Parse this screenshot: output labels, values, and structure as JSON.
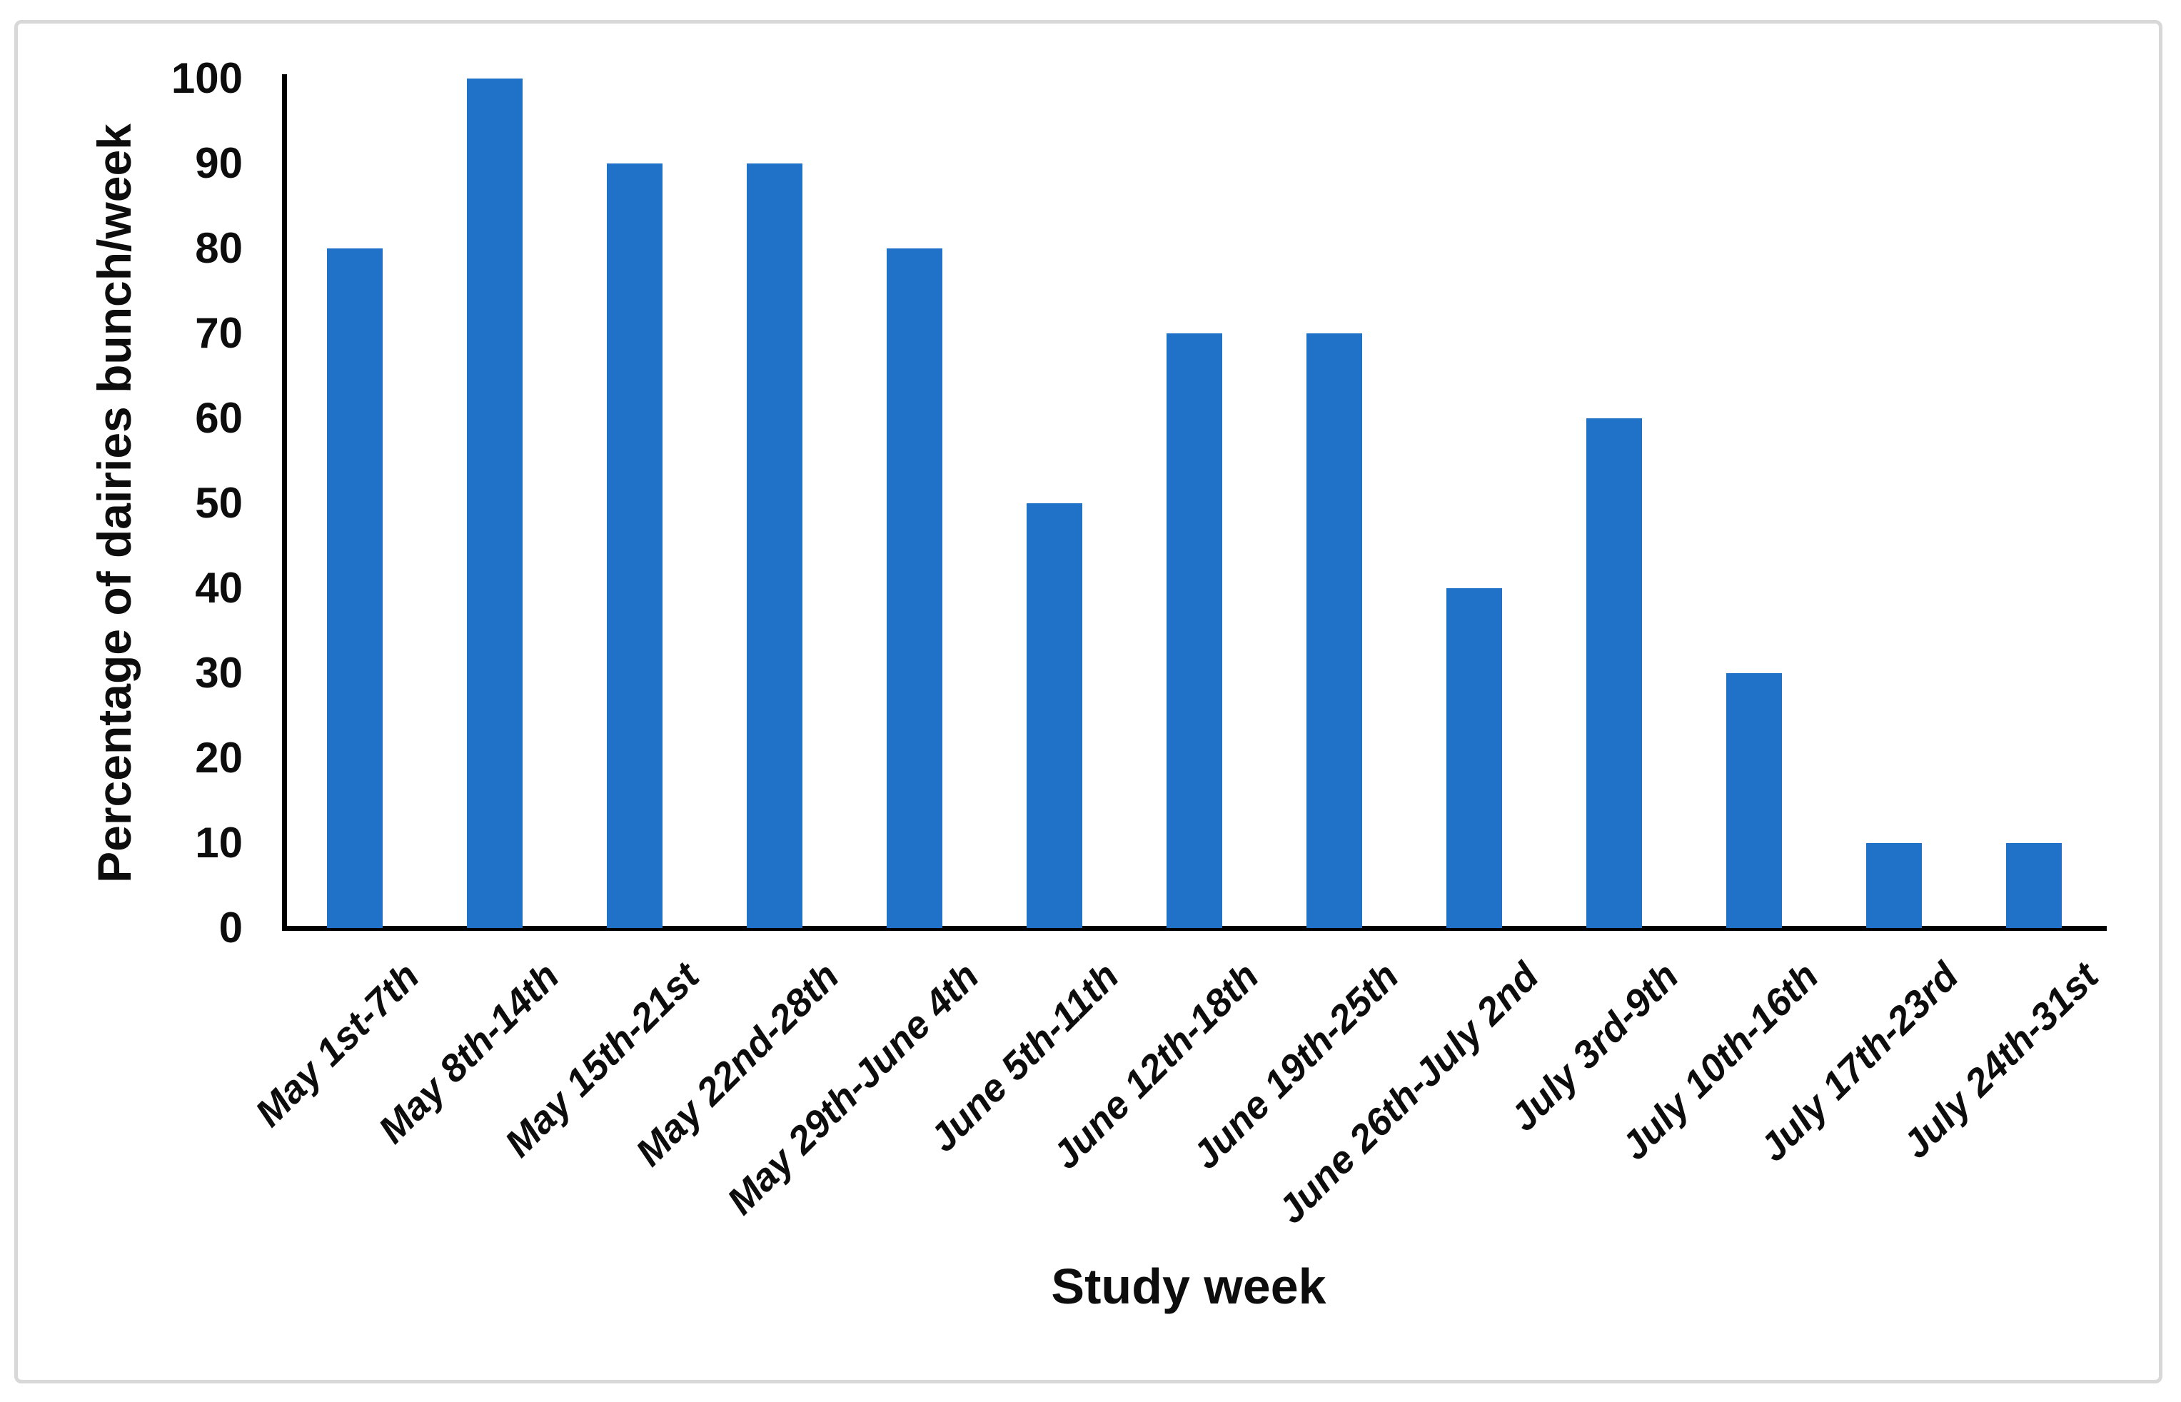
{
  "chart_data": {
    "type": "bar",
    "title": "",
    "categories": [
      "May 1st-7th",
      "May 8th-14th",
      "May 15th-21st",
      "May 22nd-28th",
      "May 29th-June 4th",
      "June 5th-11th",
      "June 12th-18th",
      "June 19th-25th",
      "June 26th-July 2nd",
      "July 3rd-9th",
      "July 10th-16th",
      "July 17th-23rd",
      "July 24th-31st"
    ],
    "values": [
      80,
      100,
      90,
      90,
      80,
      50,
      70,
      70,
      40,
      60,
      30,
      10,
      10
    ],
    "xlabel": "Study week",
    "ylabel": "Percentage of dairies bunch/week",
    "ylim": [
      0,
      100
    ],
    "yticks": [
      0,
      10,
      20,
      30,
      40,
      50,
      60,
      70,
      80,
      90,
      100
    ],
    "bar_color": "#1F72C8",
    "axis_color": "#000000",
    "text_color": "#0d0d0d",
    "frame_color": "#d8d8d8",
    "grid": false,
    "legend_position": "none"
  }
}
